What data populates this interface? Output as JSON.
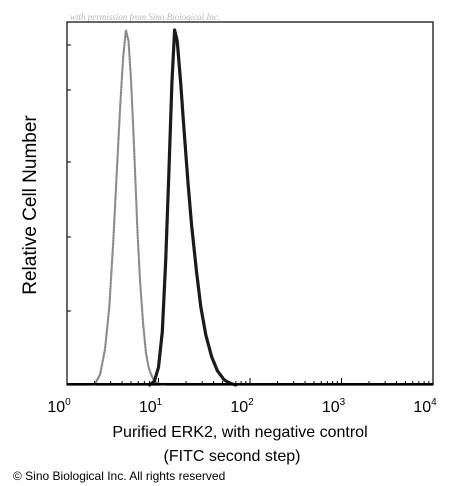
{
  "watermark": "with permission from Sino Biological Inc.",
  "copyright": "© Sino Biological Inc. All rights reserved",
  "colors": {
    "sample": "#1a1a1a",
    "control": "#8a8a8a",
    "axis": "#000000"
  },
  "chart_data": {
    "type": "area",
    "xscale": "log",
    "xlim": [
      1,
      10000
    ],
    "ylim": [
      0,
      1
    ],
    "xlabel_line1": "Purified ERK2, with negative control",
    "xlabel_line2": "(FITC second step)",
    "ylabel": "Relative Cell Number",
    "x_ticks": [
      {
        "base": "10",
        "exp": "0",
        "value": 1
      },
      {
        "base": "10",
        "exp": "1",
        "value": 10
      },
      {
        "base": "10",
        "exp": "2",
        "value": 100
      },
      {
        "base": "10",
        "exp": "3",
        "value": 1000
      },
      {
        "base": "10",
        "exp": "4",
        "value": 10000
      }
    ],
    "series": [
      {
        "key": "control",
        "style": "dotted",
        "x": [
          2.0,
          2.3,
          2.6,
          2.9,
          3.2,
          3.5,
          3.8,
          4.1,
          4.4,
          4.7,
          5.0,
          5.3,
          5.6,
          5.9,
          6.3,
          6.8,
          7.3,
          7.8,
          8.3,
          9.0,
          10.0,
          11.5
        ],
        "y": [
          0.0,
          0.03,
          0.1,
          0.22,
          0.4,
          0.6,
          0.78,
          0.92,
          1.0,
          0.97,
          0.86,
          0.72,
          0.57,
          0.43,
          0.29,
          0.17,
          0.09,
          0.05,
          0.03,
          0.01,
          0.005,
          0.0
        ]
      },
      {
        "key": "sample",
        "style": "solid",
        "x": [
          8.0,
          9.0,
          10.0,
          11.0,
          12.0,
          13.0,
          14.0,
          15.0,
          16.0,
          17.5,
          19.0,
          21.0,
          23.0,
          26.0,
          29.0,
          33.0,
          38.0,
          44.0,
          52.0,
          60.0,
          70.0
        ],
        "y": [
          0.0,
          0.01,
          0.05,
          0.15,
          0.35,
          0.6,
          0.85,
          1.0,
          0.97,
          0.85,
          0.72,
          0.57,
          0.45,
          0.32,
          0.22,
          0.14,
          0.08,
          0.04,
          0.015,
          0.005,
          0.0
        ]
      }
    ]
  }
}
